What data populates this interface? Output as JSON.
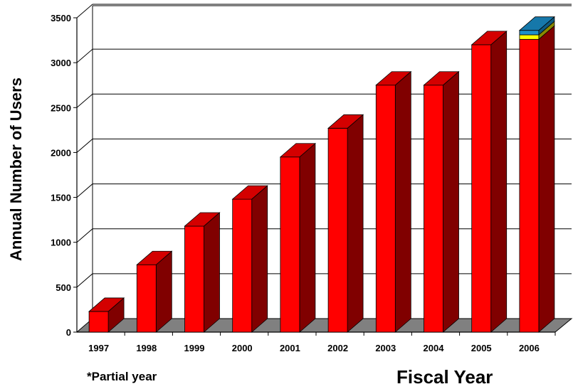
{
  "chart_data": {
    "type": "bar",
    "title": "",
    "ylabel": "Annual Number of Users",
    "xlabel": "Fiscal Year",
    "note": "*Partial year",
    "ylim": [
      0,
      3500
    ],
    "yticks": [
      0,
      500,
      1000,
      1500,
      2000,
      2500,
      3000,
      3500
    ],
    "grid": true,
    "categories": [
      "1997",
      "1998",
      "1999",
      "2000",
      "2001",
      "2002",
      "2003",
      "2004",
      "2005",
      "2006"
    ],
    "series": [
      {
        "values": [
          230,
          750,
          1180,
          1480,
          1950,
          2270,
          2750,
          2750,
          3200,
          3260
        ]
      },
      {
        "values": [
          0,
          0,
          0,
          0,
          0,
          0,
          0,
          0,
          0,
          50
        ]
      },
      {
        "values": [
          0,
          0,
          0,
          0,
          0,
          0,
          0,
          0,
          0,
          50
        ]
      }
    ],
    "colors": {
      "series_front": [
        "#ff0000",
        "#ffff00",
        "#1e8fc8"
      ],
      "series_top": [
        "#d40000",
        "#d8d800",
        "#1678aa"
      ],
      "series_side": [
        "#800000",
        "#8a8a00",
        "#0e5a80"
      ],
      "floor": "#808080"
    }
  }
}
